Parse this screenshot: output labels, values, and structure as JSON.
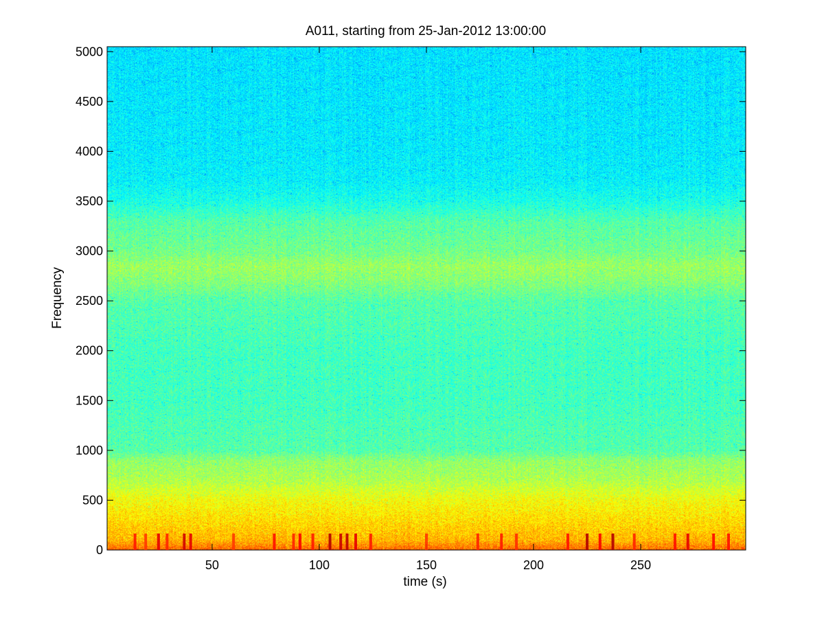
{
  "chart_data": {
    "type": "heatmap",
    "title": "A011, starting from 25-Jan-2012 13:00:00",
    "xlabel": "time (s)",
    "ylabel": "Frequency",
    "xlim": [
      1,
      299
    ],
    "ylim": [
      0,
      5050
    ],
    "xticks": [
      50,
      100,
      150,
      200,
      250
    ],
    "yticks": [
      0,
      500,
      1000,
      1500,
      2000,
      2500,
      3000,
      3500,
      4000,
      4500,
      5000
    ],
    "colormap": "jet",
    "grid": false,
    "intensity_profile": {
      "frequency": [
        0,
        100,
        300,
        500,
        700,
        900,
        1000,
        1500,
        2000,
        2500,
        2700,
        2850,
        3000,
        3300,
        3500,
        3700,
        4000,
        5000
      ],
      "level": [
        0.78,
        0.7,
        0.66,
        0.62,
        0.55,
        0.52,
        0.46,
        0.44,
        0.44,
        0.46,
        0.51,
        0.53,
        0.49,
        0.46,
        0.4,
        0.37,
        0.36,
        0.35
      ]
    },
    "bursts": [
      {
        "time": 14,
        "level": 0.85
      },
      {
        "time": 19,
        "level": 0.82
      },
      {
        "time": 25,
        "level": 0.9
      },
      {
        "time": 29,
        "level": 0.84
      },
      {
        "time": 37,
        "level": 0.92
      },
      {
        "time": 40,
        "level": 0.9
      },
      {
        "time": 60,
        "level": 0.82
      },
      {
        "time": 79,
        "level": 0.86
      },
      {
        "time": 88,
        "level": 0.84
      },
      {
        "time": 91,
        "level": 0.88
      },
      {
        "time": 97,
        "level": 0.85
      },
      {
        "time": 105,
        "level": 0.95
      },
      {
        "time": 110,
        "level": 0.93
      },
      {
        "time": 113,
        "level": 0.94
      },
      {
        "time": 117,
        "level": 0.9
      },
      {
        "time": 124,
        "level": 0.85
      },
      {
        "time": 150,
        "level": 0.82
      },
      {
        "time": 174,
        "level": 0.84
      },
      {
        "time": 185,
        "level": 0.85
      },
      {
        "time": 192,
        "level": 0.83
      },
      {
        "time": 216,
        "level": 0.86
      },
      {
        "time": 225,
        "level": 0.95
      },
      {
        "time": 231,
        "level": 0.88
      },
      {
        "time": 237,
        "level": 0.95
      },
      {
        "time": 247,
        "level": 0.84
      },
      {
        "time": 266,
        "level": 0.86
      },
      {
        "time": 272,
        "level": 0.9
      },
      {
        "time": 284,
        "level": 0.87
      },
      {
        "time": 291,
        "level": 0.86
      }
    ]
  }
}
